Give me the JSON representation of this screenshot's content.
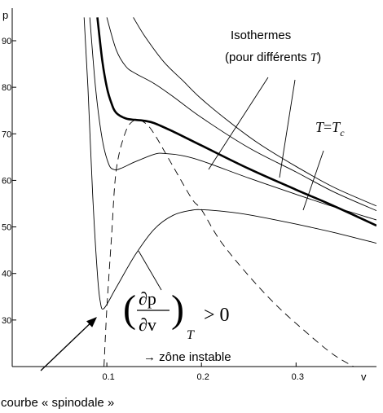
{
  "chart_data": {
    "type": "line",
    "xlabel": "v",
    "ylabel": "p",
    "xlim": [
      0,
      0.385
    ],
    "ylim": [
      20,
      97
    ],
    "x_ticks": [
      0.1,
      0.2,
      0.3
    ],
    "x_tick_labels": [
      "0.1",
      "0.2",
      "0.3"
    ],
    "y_ticks": [
      30,
      40,
      50,
      60,
      70,
      80,
      90
    ],
    "y_tick_labels": [
      "30",
      "40",
      "50",
      "60",
      "70",
      "80",
      "90"
    ],
    "grid": false,
    "series": [
      {
        "style": "thin",
        "x": [
          0.076,
          0.08,
          0.085,
          0.09,
          0.093,
          0.097,
          0.11,
          0.13,
          0.15,
          0.17,
          0.19,
          0.2,
          0.22,
          0.25,
          0.3,
          0.34,
          0.385
        ],
        "y": [
          95,
          80,
          57,
          40,
          34,
          32.5,
          37,
          44,
          49.5,
          52.5,
          53.6,
          53.7,
          53.4,
          52.6,
          50.6,
          48.8,
          46.5
        ]
      },
      {
        "style": "thin",
        "x": [
          0.082,
          0.088,
          0.095,
          0.102,
          0.108,
          0.115,
          0.13,
          0.15,
          0.16,
          0.18,
          0.2,
          0.25,
          0.3,
          0.34,
          0.385
        ],
        "y": [
          95,
          80,
          69,
          63.5,
          62.3,
          62.6,
          64,
          65.6,
          65.8,
          65.3,
          64.2,
          60.5,
          57,
          54.3,
          51.5
        ]
      },
      {
        "style": "bold",
        "name": "T=Tc",
        "x": [
          0.09,
          0.095,
          0.1,
          0.105,
          0.11,
          0.12,
          0.13,
          0.14,
          0.15,
          0.17,
          0.2,
          0.25,
          0.3,
          0.34,
          0.385
        ],
        "y": [
          95,
          86,
          80,
          76.5,
          74.5,
          73.3,
          73,
          72.8,
          72.3,
          70.5,
          67.5,
          62.5,
          58,
          54.5,
          50.3
        ]
      },
      {
        "style": "thin",
        "x": [
          0.1,
          0.11,
          0.12,
          0.13,
          0.15,
          0.17,
          0.2,
          0.25,
          0.3,
          0.34,
          0.385
        ],
        "y": [
          95,
          88,
          84.5,
          83,
          80.8,
          78,
          73.5,
          67,
          61.8,
          57.5,
          53.5
        ]
      },
      {
        "style": "thin",
        "x": [
          0.128,
          0.14,
          0.16,
          0.18,
          0.2,
          0.23,
          0.26,
          0.3,
          0.34,
          0.385
        ],
        "y": [
          95,
          91,
          85.5,
          81.5,
          77.5,
          72.5,
          68,
          63,
          58.5,
          54.5
        ]
      }
    ],
    "spinodal": {
      "style": "dashed",
      "x": [
        0.097,
        0.1,
        0.105,
        0.11,
        0.12,
        0.13,
        0.14,
        0.15,
        0.17,
        0.19,
        0.2,
        0.22,
        0.25,
        0.28,
        0.31,
        0.34,
        0.37
      ],
      "y": [
        20,
        32.5,
        48,
        62.3,
        70.5,
        73,
        72.4,
        70,
        63,
        56,
        53.7,
        47,
        39.5,
        33,
        27.5,
        22.5,
        19
      ]
    },
    "annotations": {
      "isothermes_line1": "Isothermes",
      "isothermes_line2_prefix": "(pour différents ",
      "isothermes_line2_var": "T",
      "isothermes_line2_suffix": ")",
      "critical_label_T": "T",
      "critical_label_eq": "=",
      "critical_label_Tc": "T",
      "critical_label_c": "c",
      "derivative_num": "∂p",
      "derivative_den": "∂v",
      "derivative_sub": "T",
      "derivative_rel": "> 0",
      "unstable_zone": "→ zône instable",
      "spinodal_label": "courbe « spinodale »"
    }
  }
}
